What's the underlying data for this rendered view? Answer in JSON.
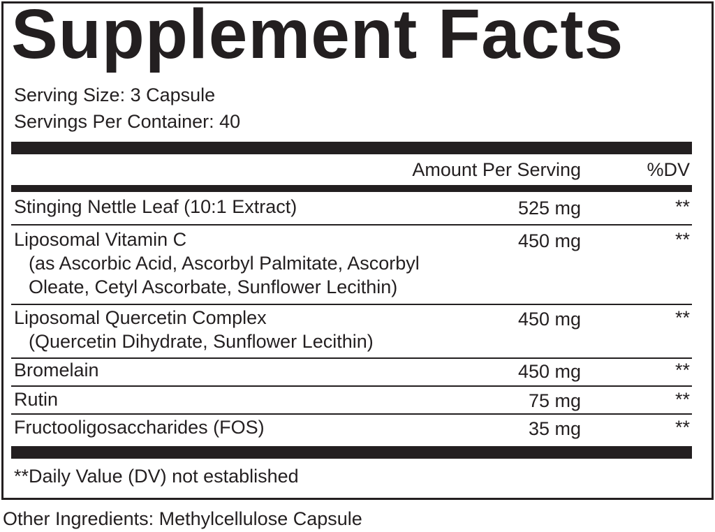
{
  "title": "Supplement Facts",
  "serving_size": "Serving Size: 3 Capsule",
  "servings_per_container": "Servings Per Container: 40",
  "header": {
    "amount": "Amount Per Serving",
    "dv": "%DV"
  },
  "rows": [
    {
      "name": "Stinging Nettle Leaf (10:1 Extract)",
      "sub": [],
      "amount": "525 mg",
      "dv": "**"
    },
    {
      "name": "Liposomal Vitamin C",
      "sub": [
        "(as Ascorbic Acid, Ascorbyl Palmitate, Ascorbyl",
        "Oleate, Cetyl Ascorbate, Sunflower Lecithin)"
      ],
      "amount": "450 mg",
      "dv": "**"
    },
    {
      "name": "Liposomal Quercetin Complex",
      "sub": [
        "(Quercetin Dihydrate, Sunflower Lecithin)"
      ],
      "amount": "450 mg",
      "dv": "**"
    },
    {
      "name": "Bromelain",
      "sub": [],
      "amount": "450 mg",
      "dv": "**"
    },
    {
      "name": "Rutin",
      "sub": [],
      "amount": "75 mg",
      "dv": "**"
    },
    {
      "name": "Fructooligosaccharides (FOS)",
      "sub": [],
      "amount": "35 mg",
      "dv": "**"
    }
  ],
  "footnote": "**Daily Value (DV) not established",
  "other_ingredients": "Other Ingredients: Methylcellulose Capsule"
}
